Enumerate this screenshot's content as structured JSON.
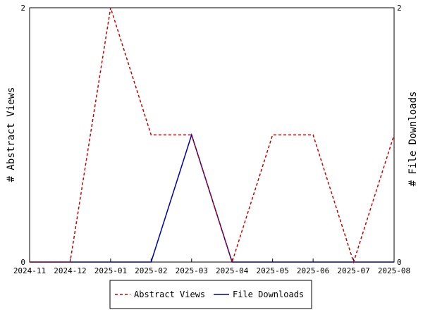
{
  "chart_data": {
    "type": "line",
    "x": [
      "2024-11",
      "2024-12",
      "2025-01",
      "2025-02",
      "2025-03",
      "2025-04",
      "2025-05",
      "2025-06",
      "2025-07",
      "2025-08"
    ],
    "ylabel_left": "# Abstract Views",
    "ylabel_right": "# File Downloads",
    "ylim_left": [
      0,
      2
    ],
    "ylim_right": [
      0,
      2
    ],
    "y_ticks_left": [
      "0",
      "2"
    ],
    "y_ticks_right": [
      "0",
      "2"
    ],
    "grid": false,
    "legend_position": "bottom-center",
    "series": [
      {
        "name": "Abstract Views",
        "axis": "left",
        "color": "#cc0000",
        "dash": "dashed",
        "values": [
          0,
          0,
          2,
          1,
          1,
          0,
          1,
          1,
          0,
          1
        ]
      },
      {
        "name": "File Downloads",
        "axis": "right",
        "color": "#0000aa",
        "dash": "solid",
        "values": [
          0,
          0,
          0,
          0,
          1,
          0,
          0,
          0,
          0,
          0
        ]
      }
    ]
  }
}
